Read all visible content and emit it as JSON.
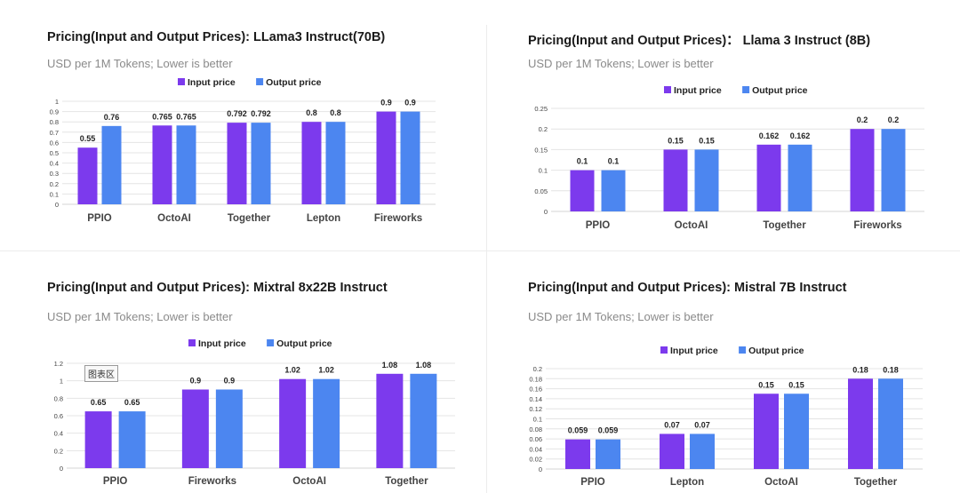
{
  "panels": [
    {
      "title": "Pricing(Input and Output Prices): LLama3 Instruct(70B)",
      "subtitle": "USD per 1M Tokens; Lower is better"
    },
    {
      "title": "Pricing(Input and Output Prices)： Llama 3 Instruct (8B)",
      "subtitle": "USD per 1M Tokens; Lower is better"
    },
    {
      "title": "Pricing(Input and Output Prices): Mixtral 8x22B Instruct",
      "subtitle": "USD per 1M Tokens; Lower is better"
    },
    {
      "title": "Pricing(Input and Output Prices): Mistral 7B Instruct",
      "subtitle": "USD per 1M Tokens; Lower is better"
    }
  ],
  "tooltip": "图表区",
  "colors": {
    "input": "#7c3aed",
    "output": "#4c86f0"
  },
  "chart_data": [
    {
      "type": "bar",
      "categories": [
        "PPIO",
        "OctoAI",
        "Together",
        "Lepton",
        "Fireworks"
      ],
      "series": [
        {
          "name": "Input price",
          "values": [
            0.55,
            0.765,
            0.792,
            0.8,
            0.9
          ],
          "labels": [
            "0.55",
            "0.765",
            "0.792",
            "0.8",
            "0.9"
          ]
        },
        {
          "name": "Output price",
          "values": [
            0.76,
            0.765,
            0.792,
            0.8,
            0.9
          ],
          "labels": [
            "0.76",
            "0.765",
            "0.792",
            "0.8",
            "0.9"
          ]
        }
      ],
      "ylim": [
        0,
        1
      ],
      "yticks": [
        0,
        0.1,
        0.2,
        0.3,
        0.4,
        0.5,
        0.6,
        0.7,
        0.8,
        0.9,
        1
      ],
      "ytick_labels": [
        "0",
        "0.1",
        "0.2",
        "0.3",
        "0.4",
        "0.5",
        "0.6",
        "0.7",
        "0.8",
        "0.9",
        "1"
      ],
      "grid": true,
      "legend": "top-center"
    },
    {
      "type": "bar",
      "categories": [
        "PPIO",
        "OctoAI",
        "Together",
        "Fireworks"
      ],
      "series": [
        {
          "name": "Input price",
          "values": [
            0.1,
            0.15,
            0.162,
            0.2
          ],
          "labels": [
            "0.1",
            "0.15",
            "0.162",
            "0.2"
          ]
        },
        {
          "name": "Output price",
          "values": [
            0.1,
            0.15,
            0.162,
            0.2
          ],
          "labels": [
            "0.1",
            "0.15",
            "0.162",
            "0.2"
          ]
        }
      ],
      "ylim": [
        0,
        0.25
      ],
      "yticks": [
        0,
        0.05,
        0.1,
        0.15,
        0.2,
        0.25
      ],
      "ytick_labels": [
        "0",
        "0.05",
        "0.1",
        "0.15",
        "0.2",
        "0.25"
      ],
      "grid": true,
      "legend": "top-center"
    },
    {
      "type": "bar",
      "categories": [
        "PPIO",
        "Fireworks",
        "OctoAI",
        "Together"
      ],
      "series": [
        {
          "name": "Input price",
          "values": [
            0.65,
            0.9,
            1.02,
            1.08
          ],
          "labels": [
            "0.65",
            "0.9",
            "1.02",
            "1.08"
          ]
        },
        {
          "name": "Output price",
          "values": [
            0.65,
            0.9,
            1.02,
            1.08
          ],
          "labels": [
            "0.65",
            "0.9",
            "1.02",
            "1.08"
          ]
        }
      ],
      "ylim": [
        0,
        1.2
      ],
      "yticks": [
        0,
        0.2,
        0.4,
        0.6,
        0.8,
        1,
        1.2
      ],
      "ytick_labels": [
        "0",
        "0.2",
        "0.4",
        "0.6",
        "0.8",
        "1",
        "1.2"
      ],
      "grid": true,
      "legend": "top-center"
    },
    {
      "type": "bar",
      "categories": [
        "PPIO",
        "Lepton",
        "OctoAI",
        "Together"
      ],
      "series": [
        {
          "name": "Input price",
          "values": [
            0.059,
            0.07,
            0.15,
            0.18
          ],
          "labels": [
            "0.059",
            "0.07",
            "0.15",
            "0.18"
          ]
        },
        {
          "name": "Output price",
          "values": [
            0.059,
            0.07,
            0.15,
            0.18
          ],
          "labels": [
            "0.059",
            "0.07",
            "0.15",
            "0.18"
          ]
        }
      ],
      "ylim": [
        0,
        0.2
      ],
      "yticks": [
        0,
        0.02,
        0.04,
        0.06,
        0.08,
        0.1,
        0.12,
        0.14,
        0.16,
        0.18,
        0.2
      ],
      "ytick_labels": [
        "0",
        "0.02",
        "0.04",
        "0.06",
        "0.08",
        "0.1",
        "0.12",
        "0.14",
        "0.16",
        "0.18",
        "0.2"
      ],
      "grid": true,
      "legend": "top-center"
    }
  ]
}
